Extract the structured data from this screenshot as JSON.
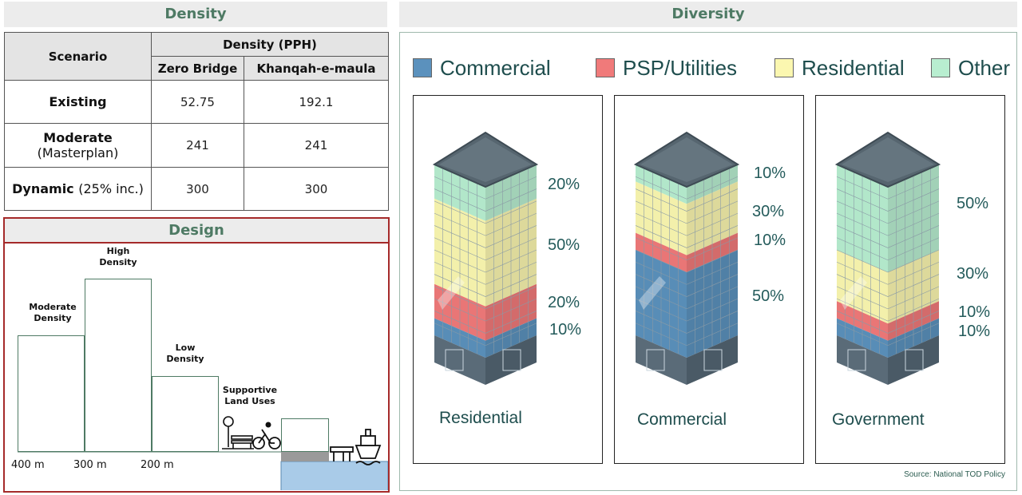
{
  "density": {
    "title": "Density",
    "scenario_header": "Scenario",
    "group_header": "Density (PPH)",
    "col1": "Zero Bridge",
    "col2": "Khanqah-e-maula",
    "rows": [
      {
        "name": "Existing",
        "sub": "",
        "v1": "52.75",
        "v2": "192.1"
      },
      {
        "name": "Moderate",
        "sub": "(Masterplan)",
        "v1": "241",
        "v2": "241"
      },
      {
        "name": "Dynamic",
        "sub": "(25% inc.)",
        "v1": "300",
        "v2": "300"
      }
    ]
  },
  "design": {
    "title": "Design",
    "labels": {
      "moderate": "Moderate Density",
      "high": "High Density",
      "low": "Low Density",
      "supportive": "Supportive Land Uses"
    },
    "distances": [
      "400 m",
      "300 m",
      "200 m"
    ]
  },
  "diversity": {
    "title": "Diversity",
    "legend": [
      {
        "name": "Commercial",
        "color": "#5b91bd"
      },
      {
        "name": "PSP/Utilities",
        "color": "#f07a7a"
      },
      {
        "name": "Residential",
        "color": "#fbf7b0"
      },
      {
        "name": "Other",
        "color": "#b8eed0"
      }
    ],
    "buildings": [
      {
        "caption": "Residential",
        "shares": {
          "other": 20,
          "residential": 50,
          "psp": 20,
          "commercial": 10
        },
        "labels": [
          "20%",
          "50%",
          "20%",
          "10%"
        ]
      },
      {
        "caption": "Commercial",
        "shares": {
          "other": 10,
          "residential": 30,
          "psp": 10,
          "commercial": 50
        },
        "labels": [
          "10%",
          "30%",
          "10%",
          "50%"
        ]
      },
      {
        "caption": "Government",
        "shares": {
          "other": 50,
          "residential": 30,
          "psp": 10,
          "commercial": 10
        },
        "labels": [
          "50%",
          "30%",
          "10%",
          "10%"
        ]
      }
    ],
    "source": "Source: National TOD Policy"
  }
}
